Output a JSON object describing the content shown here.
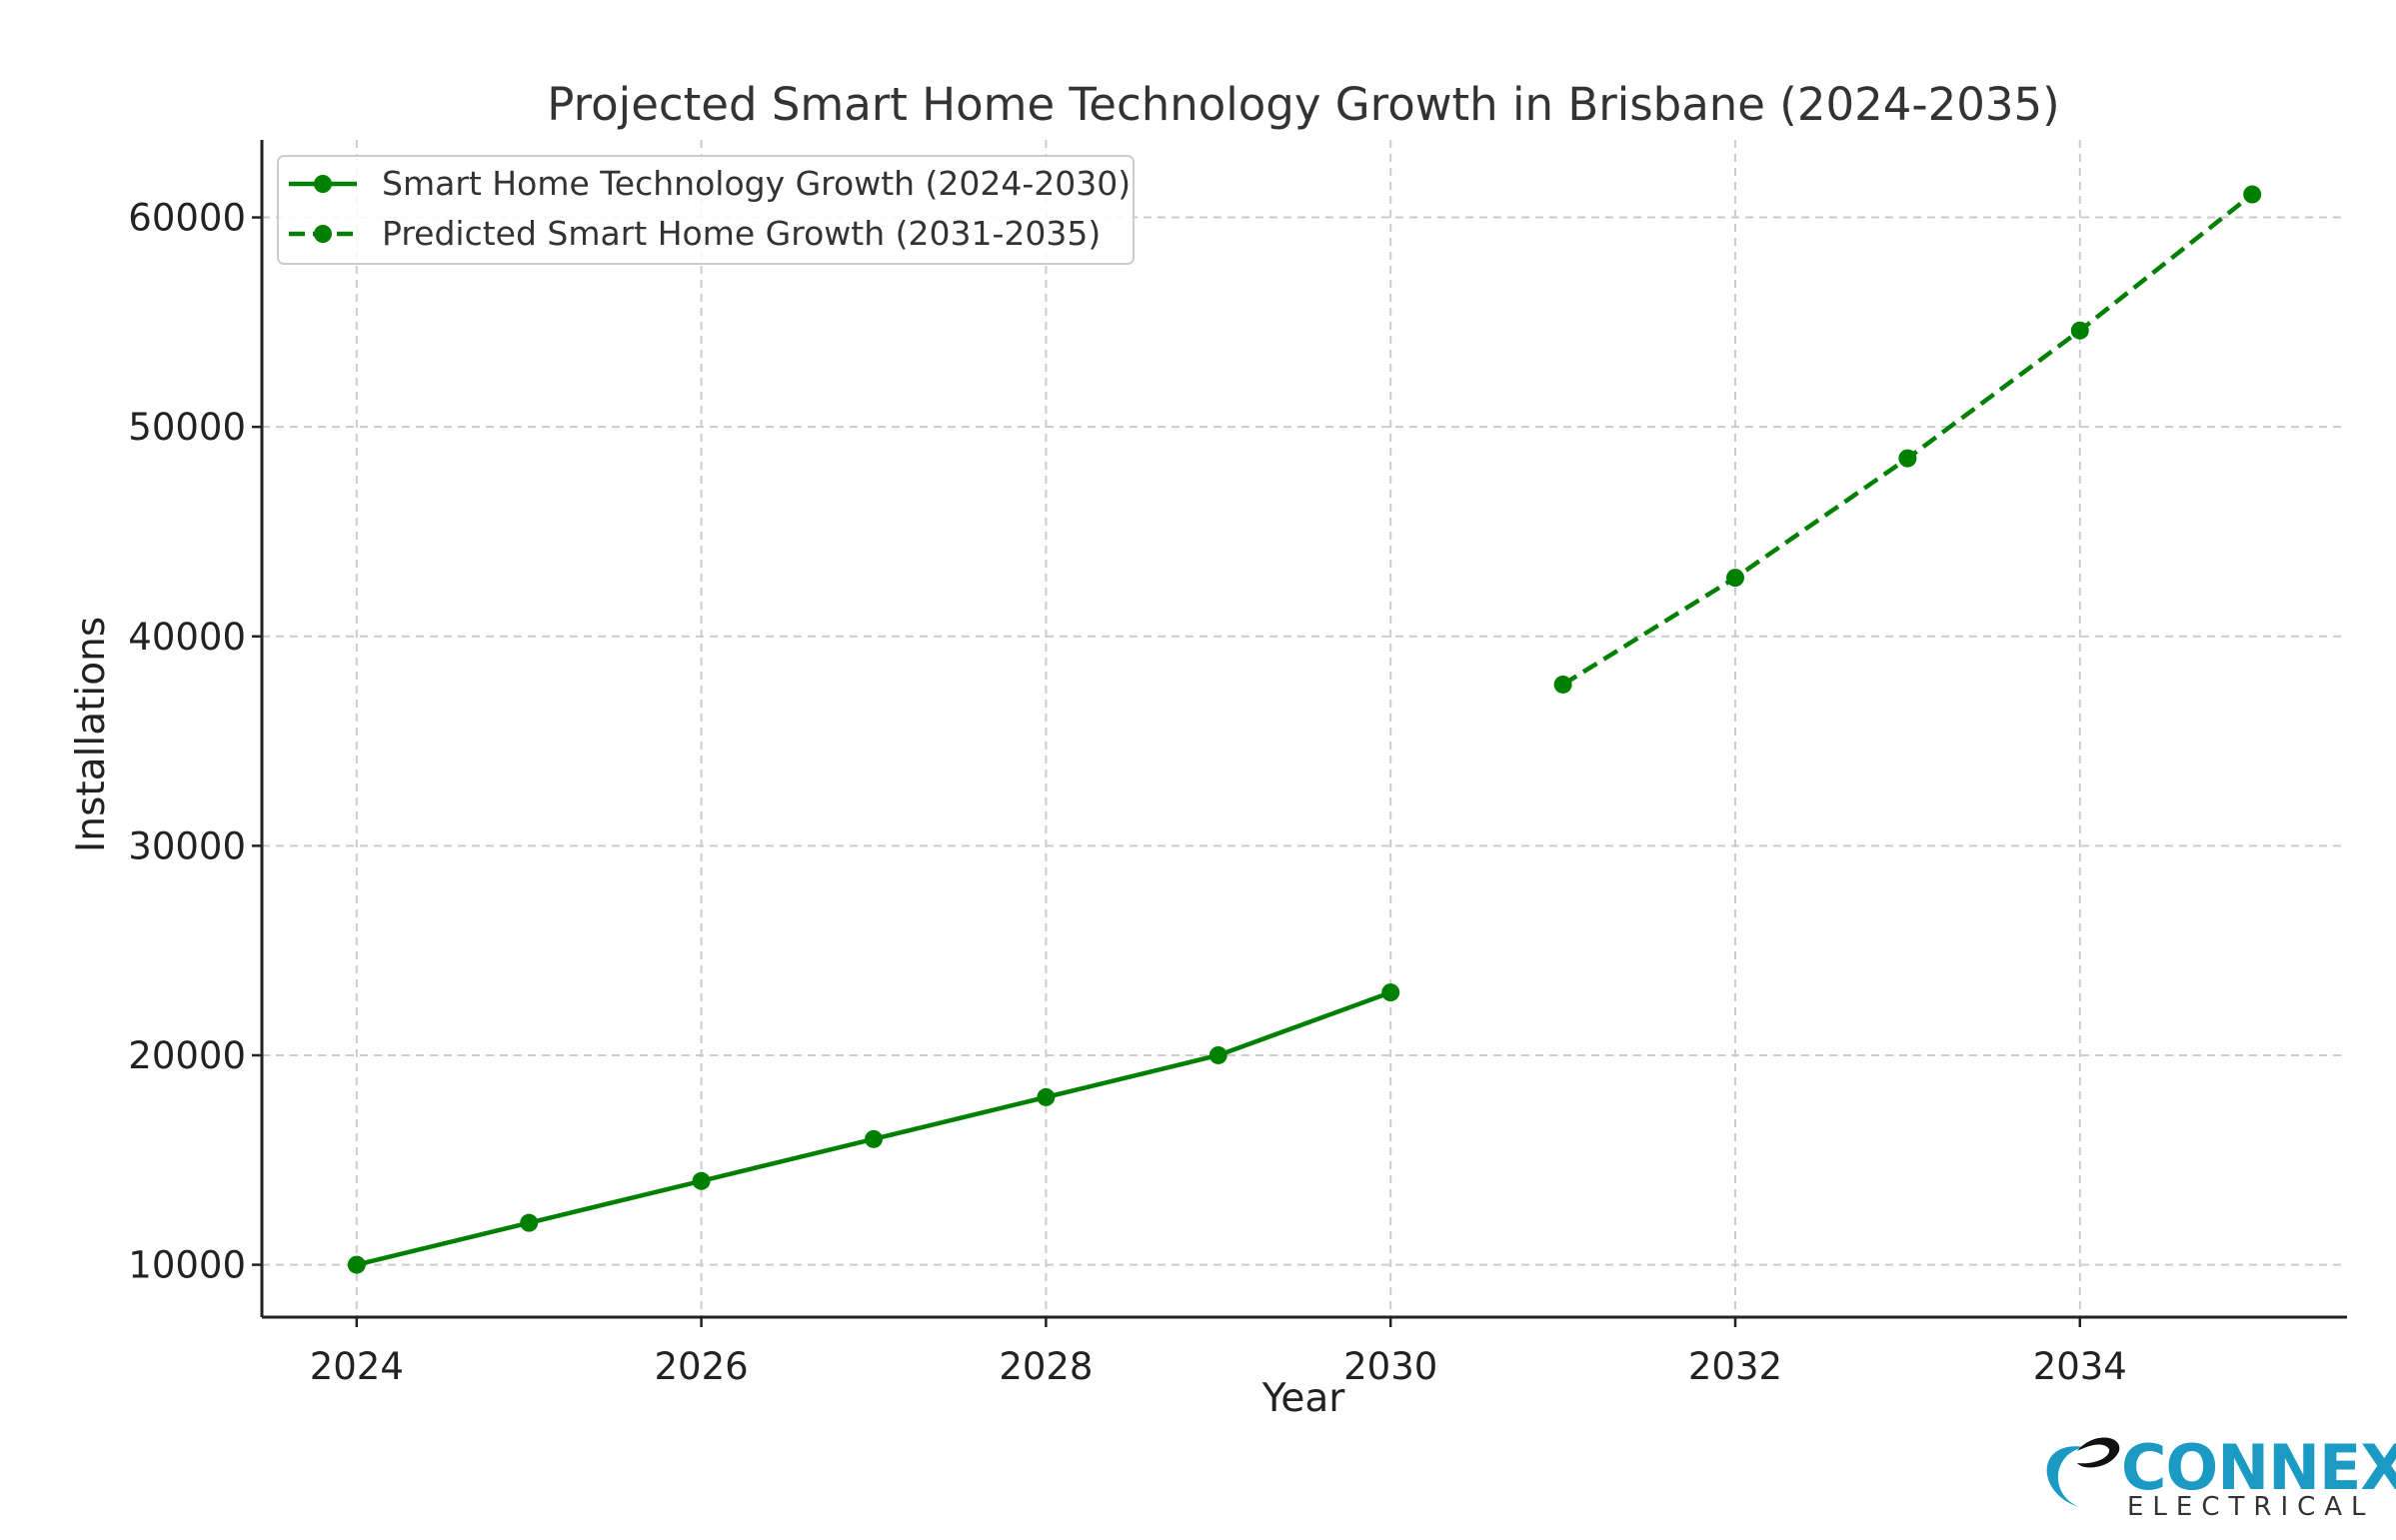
{
  "chart_data": {
    "type": "line",
    "title": "Projected Smart Home Technology Growth in Brisbane (2024-2035)",
    "xlabel": "Year",
    "ylabel": "Installations",
    "xlim": [
      2023.45,
      2035.55
    ],
    "ylim": [
      7500,
      63700
    ],
    "xticks": [
      2024,
      2026,
      2028,
      2030,
      2032,
      2034
    ],
    "yticks": [
      10000,
      20000,
      30000,
      40000,
      50000,
      60000
    ],
    "grid": true,
    "legend_position": "upper-left",
    "series": [
      {
        "name": "Smart Home Technology Growth (2024-2030)",
        "style": "solid",
        "color": "#008000",
        "x": [
          2024,
          2025,
          2026,
          2027,
          2028,
          2029,
          2030
        ],
        "y": [
          10000,
          12000,
          14000,
          16000,
          18000,
          20000,
          23000
        ]
      },
      {
        "name": "Predicted Smart Home Growth (2031-2035)",
        "style": "dashed",
        "color": "#008000",
        "x": [
          2031,
          2032,
          2033,
          2034,
          2035
        ],
        "y": [
          37700,
          42800,
          48500,
          54600,
          61100
        ]
      }
    ]
  },
  "logo": {
    "name": "CONNEX",
    "subtitle": "ELECTRICAL",
    "color": "#1b9bc4"
  }
}
